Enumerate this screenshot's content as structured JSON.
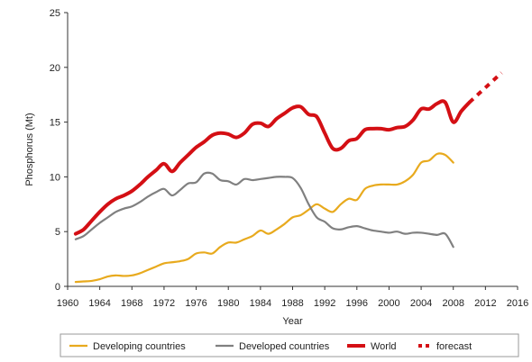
{
  "chart_data": {
    "type": "line",
    "title": "",
    "xlabel": "Year",
    "ylabel": "Phosphorus (Mt)",
    "xlim": [
      1960,
      2016
    ],
    "ylim": [
      0,
      25
    ],
    "xticks": [
      1960,
      1964,
      1968,
      1972,
      1976,
      1980,
      1984,
      1988,
      1992,
      1996,
      2000,
      2004,
      2008,
      2012,
      2016
    ],
    "yticks": [
      0,
      5,
      10,
      15,
      20,
      25
    ],
    "grid": false,
    "legend_position": "bottom",
    "series": [
      {
        "name": "Developing countries",
        "color": "#E8AA1E",
        "style": "solid",
        "x": [
          1961,
          1962,
          1963,
          1964,
          1965,
          1966,
          1967,
          1968,
          1969,
          1970,
          1971,
          1972,
          1973,
          1974,
          1975,
          1976,
          1977,
          1978,
          1979,
          1980,
          1981,
          1982,
          1983,
          1984,
          1985,
          1986,
          1987,
          1988,
          1989,
          1990,
          1991,
          1992,
          1993,
          1994,
          1995,
          1996,
          1997,
          1998,
          1999,
          2000,
          2001,
          2002,
          2003,
          2004,
          2005,
          2006,
          2007,
          2008
        ],
        "y": [
          0.4,
          0.45,
          0.5,
          0.65,
          0.9,
          1.0,
          0.95,
          1.0,
          1.2,
          1.5,
          1.8,
          2.1,
          2.2,
          2.3,
          2.5,
          3.0,
          3.1,
          3.0,
          3.6,
          4.0,
          4.0,
          4.3,
          4.6,
          5.1,
          4.8,
          5.2,
          5.7,
          6.3,
          6.5,
          7.0,
          7.5,
          7.1,
          6.8,
          7.5,
          8.0,
          7.9,
          8.9,
          9.2,
          9.3,
          9.3,
          9.3,
          9.6,
          10.2,
          11.3,
          11.5,
          12.1,
          12.0,
          11.3
        ]
      },
      {
        "name": "Developed countries",
        "color": "#808080",
        "style": "solid",
        "x": [
          1961,
          1962,
          1963,
          1964,
          1965,
          1966,
          1967,
          1968,
          1969,
          1970,
          1971,
          1972,
          1973,
          1974,
          1975,
          1976,
          1977,
          1978,
          1979,
          1980,
          1981,
          1982,
          1983,
          1984,
          1985,
          1986,
          1987,
          1988,
          1989,
          1990,
          1991,
          1992,
          1993,
          1994,
          1995,
          1996,
          1997,
          1998,
          1999,
          2000,
          2001,
          2002,
          2003,
          2004,
          2005,
          2006,
          2007,
          2008
        ],
        "y": [
          4.3,
          4.6,
          5.2,
          5.8,
          6.3,
          6.8,
          7.1,
          7.3,
          7.7,
          8.2,
          8.6,
          8.9,
          8.3,
          8.8,
          9.4,
          9.5,
          10.3,
          10.3,
          9.7,
          9.6,
          9.3,
          9.8,
          9.7,
          9.8,
          9.9,
          10.0,
          10.0,
          9.9,
          9.0,
          7.5,
          6.3,
          5.9,
          5.3,
          5.2,
          5.4,
          5.5,
          5.3,
          5.1,
          5.0,
          4.9,
          5.0,
          4.8,
          4.9,
          4.9,
          4.8,
          4.7,
          4.8,
          3.6
        ]
      },
      {
        "name": "World",
        "color": "#D40F14",
        "style": "solid",
        "x": [
          1961,
          1962,
          1963,
          1964,
          1965,
          1966,
          1967,
          1968,
          1969,
          1970,
          1971,
          1972,
          1973,
          1974,
          1975,
          1976,
          1977,
          1978,
          1979,
          1980,
          1981,
          1982,
          1983,
          1984,
          1985,
          1986,
          1987,
          1988,
          1989,
          1990,
          1991,
          1992,
          1993,
          1994,
          1995,
          1996,
          1997,
          1998,
          1999,
          2000,
          2001,
          2002,
          2003,
          2004,
          2005,
          2006,
          2007,
          2008,
          2009,
          2010
        ],
        "y": [
          4.8,
          5.2,
          6.0,
          6.8,
          7.5,
          8.0,
          8.3,
          8.7,
          9.3,
          10.0,
          10.6,
          11.2,
          10.5,
          11.3,
          12.0,
          12.7,
          13.2,
          13.8,
          14.0,
          13.9,
          13.6,
          14.0,
          14.8,
          14.9,
          14.6,
          15.3,
          15.8,
          16.3,
          16.4,
          15.7,
          15.5,
          14.0,
          12.6,
          12.6,
          13.3,
          13.5,
          14.3,
          14.4,
          14.4,
          14.3,
          14.5,
          14.6,
          15.2,
          16.2,
          16.2,
          16.7,
          16.8,
          15.0,
          16.0,
          16.8
        ]
      },
      {
        "name": "forecast",
        "color": "#D40F14",
        "style": "dotted",
        "x": [
          2010,
          2014
        ],
        "y": [
          16.8,
          19.5
        ]
      }
    ]
  }
}
